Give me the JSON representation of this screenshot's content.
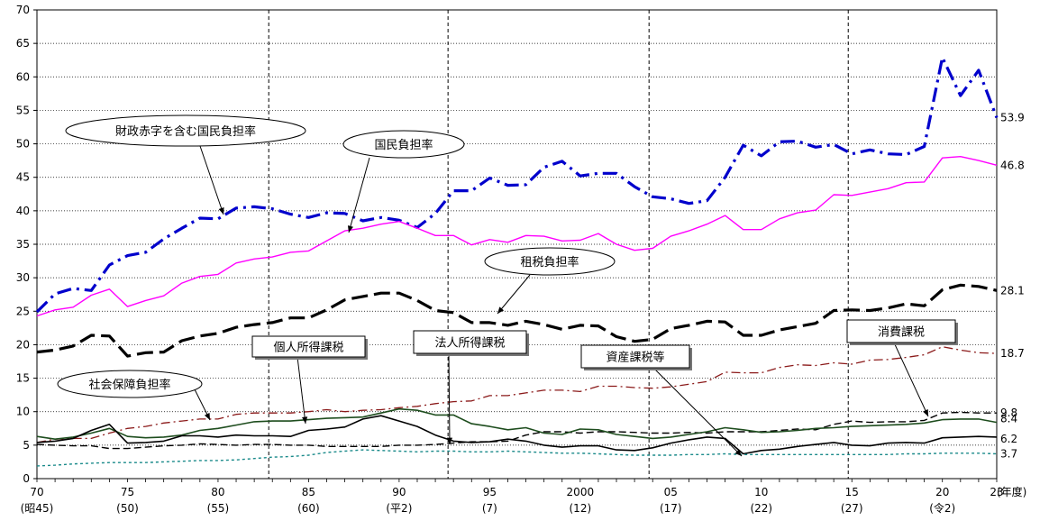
{
  "chart_data": {
    "type": "line",
    "xlabel": "(年度)",
    "ylim": [
      0,
      70
    ],
    "y_ticks": [
      0,
      5,
      10,
      15,
      20,
      25,
      30,
      35,
      40,
      45,
      50,
      55,
      60,
      65,
      70
    ],
    "xlim": [
      1970,
      2023
    ],
    "x_ticks": [
      {
        "x": 1970,
        "label": "70",
        "sub": "(昭45)"
      },
      {
        "x": 1975,
        "label": "75",
        "sub": "(50)"
      },
      {
        "x": 1980,
        "label": "80",
        "sub": "(55)"
      },
      {
        "x": 1985,
        "label": "85",
        "sub": "(60)"
      },
      {
        "x": 1990,
        "label": "90",
        "sub": "(平2)"
      },
      {
        "x": 1995,
        "label": "95",
        "sub": "(7)"
      },
      {
        "x": 2000,
        "label": "2000",
        "sub": "(12)"
      },
      {
        "x": 2005,
        "label": "05",
        "sub": "(17)"
      },
      {
        "x": 2010,
        "label": "10",
        "sub": "(22)"
      },
      {
        "x": 2015,
        "label": "15",
        "sub": "(27)"
      },
      {
        "x": 2020,
        "label": "20",
        "sub": "(令2)"
      },
      {
        "x": 2023,
        "label": "23",
        "sub": ""
      }
    ],
    "reference_lines_x": [
      1982.8,
      1992.7,
      2003.8,
      2014.8
    ],
    "x": [
      1970,
      1971,
      1972,
      1973,
      1974,
      1975,
      1976,
      1977,
      1978,
      1979,
      1980,
      1981,
      1982,
      1983,
      1984,
      1985,
      1986,
      1987,
      1988,
      1989,
      1990,
      1991,
      1992,
      1993,
      1994,
      1995,
      1996,
      1997,
      1998,
      1999,
      2000,
      2001,
      2002,
      2003,
      2004,
      2005,
      2006,
      2007,
      2008,
      2009,
      2010,
      2011,
      2012,
      2013,
      2014,
      2015,
      2016,
      2017,
      2018,
      2019,
      2020,
      2021,
      2022,
      2023
    ],
    "series": [
      {
        "name": "財政赤字を含む国民負担率",
        "color": "#0000cc",
        "dash": "16,6,3,6",
        "width": 3.2,
        "end_label": "53.9",
        "values": [
          24.9,
          27.6,
          28.4,
          28.1,
          31.9,
          33.3,
          33.8,
          35.8,
          37.4,
          38.9,
          38.8,
          40.4,
          40.6,
          40.3,
          39.5,
          39.0,
          39.7,
          39.6,
          38.5,
          39.0,
          38.6,
          37.5,
          39.6,
          43.0,
          43.0,
          44.9,
          43.8,
          43.9,
          46.5,
          47.4,
          45.2,
          45.6,
          45.6,
          43.6,
          42.1,
          41.8,
          41.1,
          41.5,
          45.0,
          49.8,
          48.2,
          50.3,
          50.4,
          49.5,
          49.9,
          48.5,
          49.1,
          48.5,
          48.4,
          49.6,
          62.9,
          57.2,
          61.0,
          53.9
        ]
      },
      {
        "name": "国民負担率",
        "color": "#ff00ff",
        "dash": "",
        "width": 1.4,
        "end_label": "46.8",
        "values": [
          24.3,
          25.2,
          25.6,
          27.4,
          28.3,
          25.7,
          26.6,
          27.3,
          29.2,
          30.2,
          30.5,
          32.2,
          32.8,
          33.1,
          33.8,
          34.0,
          35.5,
          37.0,
          37.4,
          38.0,
          38.4,
          37.4,
          36.3,
          36.3,
          34.9,
          35.7,
          35.3,
          36.3,
          36.2,
          35.5,
          35.6,
          36.6,
          35.0,
          34.1,
          34.4,
          36.2,
          37.0,
          38.0,
          39.3,
          37.2,
          37.2,
          38.8,
          39.7,
          40.1,
          42.4,
          42.3,
          42.8,
          43.3,
          44.2,
          44.3,
          47.9,
          48.1,
          47.5,
          46.8
        ]
      },
      {
        "name": "租税負担率",
        "color": "#000000",
        "dash": "18,7",
        "width": 3.2,
        "end_label": "28.1",
        "values": [
          18.9,
          19.2,
          19.8,
          21.4,
          21.3,
          18.3,
          18.8,
          18.9,
          20.6,
          21.3,
          21.7,
          22.6,
          23.0,
          23.3,
          24.0,
          24.0,
          25.2,
          26.7,
          27.2,
          27.7,
          27.7,
          26.6,
          25.1,
          24.8,
          23.3,
          23.3,
          22.9,
          23.5,
          23.0,
          22.3,
          22.9,
          22.8,
          21.2,
          20.5,
          20.8,
          22.4,
          22.9,
          23.5,
          23.4,
          21.4,
          21.4,
          22.2,
          22.7,
          23.2,
          25.1,
          25.2,
          25.1,
          25.5,
          26.1,
          25.8,
          28.2,
          28.9,
          28.7,
          28.1
        ]
      },
      {
        "name": "社会保障負担率",
        "color": "#8b1a1a",
        "dash": "10,4,2,4",
        "width": 1.3,
        "end_label": "18.7",
        "values": [
          5.4,
          5.9,
          6.0,
          6.0,
          6.8,
          7.5,
          7.8,
          8.3,
          8.6,
          8.9,
          8.9,
          9.6,
          9.8,
          9.8,
          9.8,
          10.0,
          10.3,
          10.0,
          10.2,
          10.3,
          10.6,
          10.8,
          11.2,
          11.5,
          11.6,
          12.4,
          12.4,
          12.8,
          13.2,
          13.2,
          13.0,
          13.8,
          13.8,
          13.6,
          13.5,
          13.7,
          14.1,
          14.5,
          15.9,
          15.8,
          15.8,
          16.6,
          17.0,
          16.9,
          17.3,
          17.1,
          17.7,
          17.8,
          18.1,
          18.5,
          19.7,
          19.2,
          18.8,
          18.7
        ]
      },
      {
        "name": "消費課税",
        "color": "#000000",
        "dash": "8,4",
        "width": 1.4,
        "end_label": "9.8",
        "values": [
          5.1,
          5.0,
          4.9,
          4.9,
          4.5,
          4.5,
          4.7,
          4.9,
          5.0,
          5.2,
          5.1,
          5.0,
          5.1,
          5.1,
          5.0,
          5.0,
          4.8,
          4.8,
          4.8,
          4.8,
          5.0,
          5.0,
          5.1,
          5.3,
          5.5,
          5.5,
          5.6,
          6.5,
          7.0,
          7.0,
          6.8,
          7.0,
          7.0,
          6.9,
          6.8,
          6.8,
          6.9,
          6.8,
          7.0,
          7.0,
          7.0,
          7.2,
          7.4,
          7.3,
          8.1,
          8.6,
          8.4,
          8.5,
          8.5,
          8.7,
          9.8,
          9.9,
          9.8,
          9.8
        ]
      },
      {
        "name": "個人所得課税",
        "color": "#1e4d1e",
        "dash": "",
        "width": 1.6,
        "end_label": "8.4",
        "values": [
          6.3,
          5.9,
          6.2,
          6.8,
          7.5,
          6.3,
          6.1,
          6.2,
          6.5,
          7.2,
          7.5,
          8.0,
          8.5,
          8.6,
          8.6,
          8.8,
          9.0,
          9.1,
          9.2,
          9.8,
          10.4,
          10.2,
          9.5,
          9.5,
          8.2,
          7.8,
          7.3,
          7.6,
          6.8,
          6.6,
          7.4,
          7.3,
          6.6,
          6.3,
          6.0,
          6.2,
          6.6,
          7.0,
          7.6,
          7.3,
          6.9,
          7.0,
          7.2,
          7.5,
          7.6,
          7.8,
          7.9,
          8.0,
          8.1,
          8.3,
          8.8,
          8.9,
          8.9,
          8.4
        ]
      },
      {
        "name": "法人所得課税",
        "color": "#000000",
        "dash": "",
        "width": 1.6,
        "end_label": "6.2",
        "values": [
          5.4,
          5.6,
          6.0,
          7.2,
          8.1,
          5.3,
          5.4,
          5.6,
          6.4,
          6.4,
          6.2,
          6.5,
          6.4,
          6.4,
          6.3,
          7.2,
          7.4,
          7.7,
          8.9,
          9.4,
          8.6,
          7.8,
          6.5,
          5.6,
          5.4,
          5.5,
          5.9,
          5.6,
          5.0,
          4.7,
          4.9,
          4.9,
          4.3,
          4.2,
          4.6,
          5.3,
          5.8,
          6.2,
          6.0,
          3.7,
          4.2,
          4.4,
          4.8,
          5.1,
          5.4,
          5.0,
          4.9,
          5.3,
          5.4,
          5.3,
          6.1,
          6.2,
          6.3,
          6.2
        ]
      },
      {
        "name": "資産課税等",
        "color": "#1a8a8a",
        "dash": "3,3",
        "width": 1.4,
        "end_label": "3.7",
        "values": [
          1.9,
          2.0,
          2.2,
          2.3,
          2.4,
          2.4,
          2.4,
          2.5,
          2.6,
          2.7,
          2.7,
          2.8,
          3.0,
          3.2,
          3.3,
          3.5,
          3.9,
          4.1,
          4.3,
          4.2,
          4.1,
          4.0,
          4.1,
          4.1,
          4.0,
          4.0,
          4.1,
          4.0,
          3.9,
          3.8,
          3.8,
          3.7,
          3.6,
          3.5,
          3.5,
          3.5,
          3.6,
          3.6,
          3.7,
          3.6,
          3.6,
          3.6,
          3.6,
          3.6,
          3.6,
          3.6,
          3.6,
          3.6,
          3.7,
          3.7,
          3.8,
          3.8,
          3.8,
          3.7
        ]
      }
    ],
    "annotations": [
      {
        "text": "財政赤字を含む国民負担率",
        "shape": "ellipse"
      },
      {
        "text": "国民負担率",
        "shape": "ellipse"
      },
      {
        "text": "租税負担率",
        "shape": "ellipse"
      },
      {
        "text": "社会保障負担率",
        "shape": "ellipse"
      },
      {
        "text": "個人所得課税",
        "shape": "rect"
      },
      {
        "text": "法人所得課税",
        "shape": "rect"
      },
      {
        "text": "資産課税等",
        "shape": "rect"
      },
      {
        "text": "消費課税",
        "shape": "rect"
      }
    ]
  }
}
